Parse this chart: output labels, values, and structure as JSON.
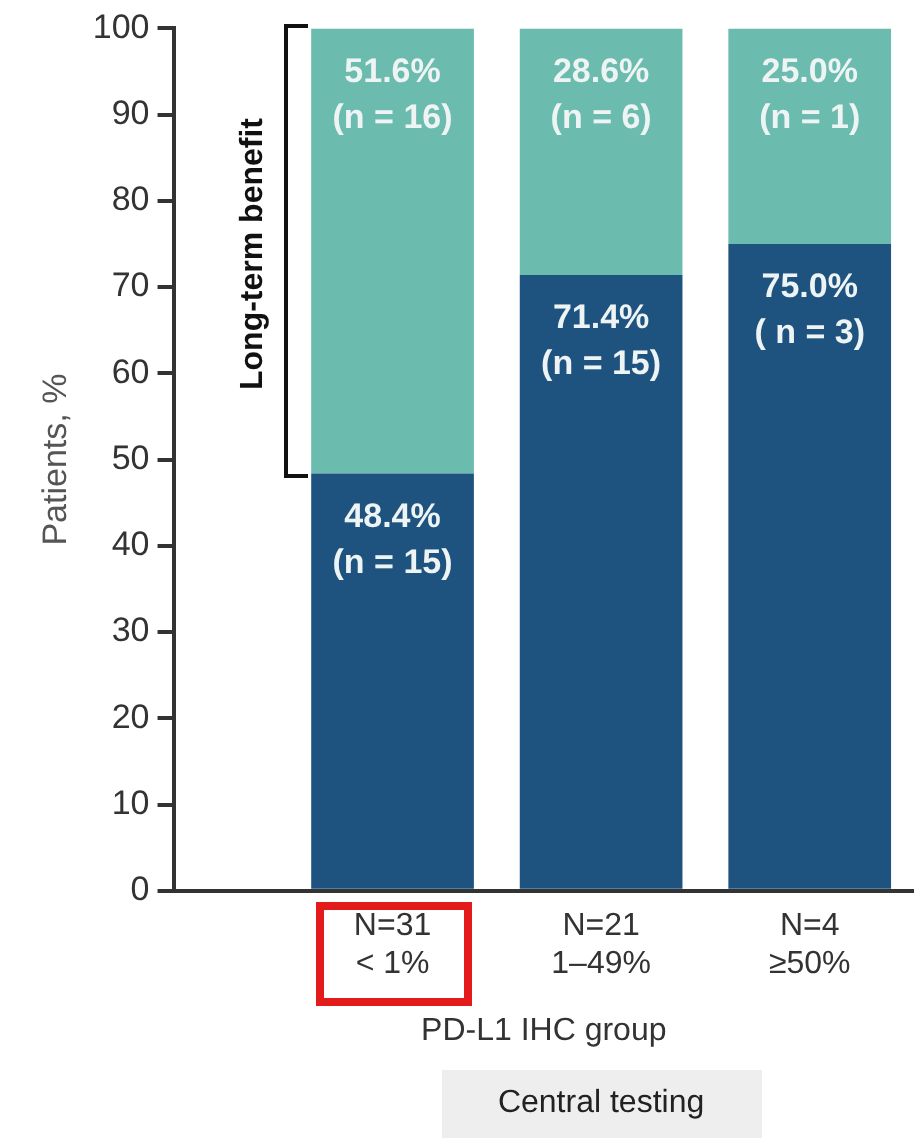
{
  "chart_data": {
    "type": "bar",
    "stacked": true,
    "ylabel": "Patients, %",
    "xlabel": "PD-L1 IHC group",
    "categories": [
      "N=31\n< 1%",
      "N=21\n1–49%",
      "N=4\n≥50%"
    ],
    "series": [
      {
        "color": "#1e5380",
        "values": [
          48.4,
          71.4,
          75.0
        ],
        "value_labels": [
          "48.4%\n(n = 15)",
          "71.4%\n(n = 15)",
          "75.0%\n( n = 3)"
        ]
      },
      {
        "color": "#6bbcae",
        "values": [
          51.6,
          28.6,
          25.0
        ],
        "value_labels": [
          "51.6%\n(n = 16)",
          "28.6%\n(n = 6)",
          "25.0%\n(n = 1)"
        ]
      }
    ],
    "ylim": [
      0,
      100
    ],
    "yticks": [
      0,
      10,
      20,
      30,
      40,
      50,
      60,
      70,
      80,
      90,
      100
    ],
    "grid": false,
    "legend": false,
    "annotations": [
      "Long-term benefit",
      "Central testing"
    ]
  }
}
